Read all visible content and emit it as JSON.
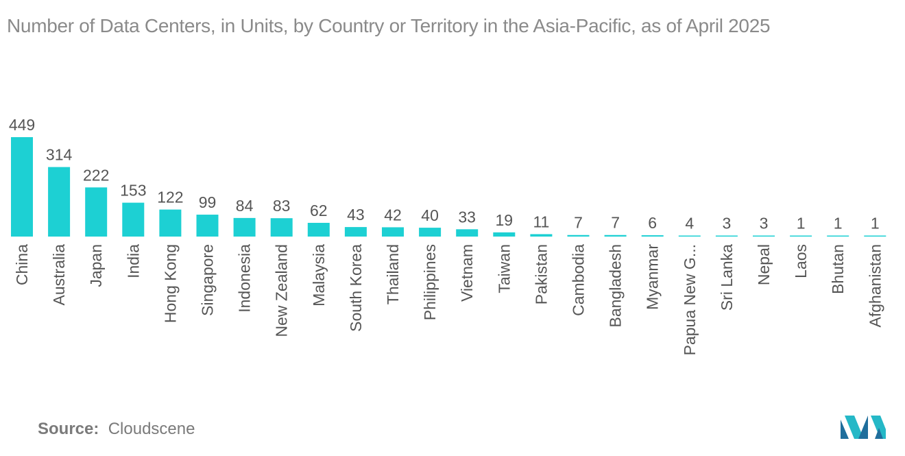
{
  "title": "Number of Data Centers, in Units, by Country or Territory in the Asia-Pacific, as of April 2025",
  "source": {
    "label": "Source:",
    "value": "Cloudscene"
  },
  "colors": {
    "bar": "#1dd0d3",
    "label": "#555555",
    "title": "#8a8a8a"
  },
  "chart_data": {
    "type": "bar",
    "title": "Number of Data Centers, in Units, by Country or Territory in the Asia-Pacific, as of April 2025",
    "xlabel": "",
    "ylabel": "",
    "categories": [
      "China",
      "Australia",
      "Japan",
      "India",
      "Hong Kong",
      "Singapore",
      "Indonesia",
      "New Zealand",
      "Malaysia",
      "South Korea",
      "Thailand",
      "Philippines",
      "Vietnam",
      "Taiwan",
      "Pakistan",
      "Cambodia",
      "Bangladesh",
      "Myanmar",
      "Papua New G...",
      "Sri Lanka",
      "Nepal",
      "Laos",
      "Bhutan",
      "Afghanistan"
    ],
    "values": [
      449,
      314,
      222,
      153,
      122,
      99,
      84,
      83,
      62,
      43,
      42,
      40,
      33,
      19,
      11,
      7,
      7,
      6,
      4,
      3,
      3,
      1,
      1,
      1
    ],
    "ylim": [
      0,
      449
    ],
    "grid": false,
    "legend": "none",
    "data_labels": true
  }
}
